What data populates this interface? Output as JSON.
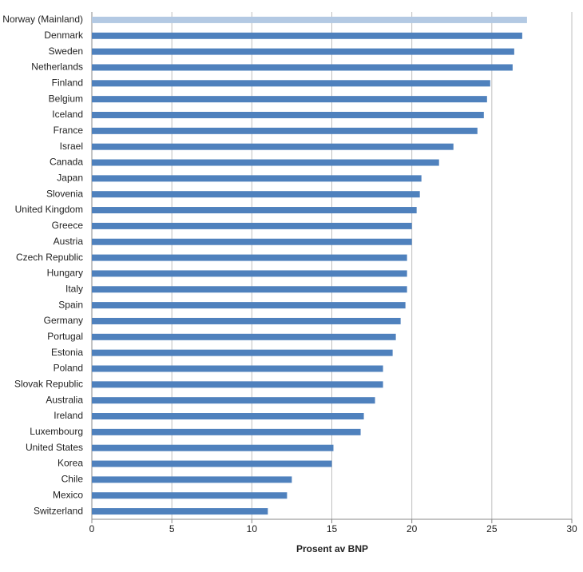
{
  "chart_data": {
    "type": "bar",
    "orientation": "horizontal",
    "x_label": "Prosent av BNP",
    "categories": [
      "Norway (Mainland)",
      "Denmark",
      "Sweden",
      "Netherlands",
      "Finland",
      "Belgium",
      "Iceland",
      "France",
      "Israel",
      "Canada",
      "Japan",
      "Slovenia",
      "United Kingdom",
      "Greece",
      "Austria",
      "Czech Republic",
      "Hungary",
      "Italy",
      "Spain",
      "Germany",
      "Portugal",
      "Estonia",
      "Poland",
      "Slovak Republic",
      "Australia",
      "Ireland",
      "Luxembourg",
      "United States",
      "Korea",
      "Chile",
      "Mexico",
      "Switzerland"
    ],
    "values": [
      27.2,
      26.9,
      26.4,
      26.3,
      24.9,
      24.7,
      24.5,
      24.1,
      22.6,
      21.7,
      20.6,
      20.5,
      20.3,
      20.0,
      20.0,
      19.7,
      19.7,
      19.7,
      19.6,
      19.3,
      19.0,
      18.8,
      18.2,
      18.2,
      17.7,
      17.0,
      16.8,
      15.1,
      15.0,
      12.5,
      12.2,
      11.0
    ],
    "colors": [
      "#b3c9e3",
      "#4f81bd",
      "#4f81bd",
      "#4f81bd",
      "#4f81bd",
      "#4f81bd",
      "#4f81bd",
      "#4f81bd",
      "#4f81bd",
      "#4f81bd",
      "#4f81bd",
      "#4f81bd",
      "#4f81bd",
      "#4f81bd",
      "#4f81bd",
      "#4f81bd",
      "#4f81bd",
      "#4f81bd",
      "#4f81bd",
      "#4f81bd",
      "#4f81bd",
      "#4f81bd",
      "#4f81bd",
      "#4f81bd",
      "#4f81bd",
      "#4f81bd",
      "#4f81bd",
      "#4f81bd",
      "#4f81bd",
      "#4f81bd",
      "#4f81bd",
      "#4f81bd"
    ],
    "xlim": [
      0,
      30
    ],
    "xticks": [
      0,
      5,
      10,
      15,
      20,
      25,
      30
    ],
    "grid": true
  }
}
